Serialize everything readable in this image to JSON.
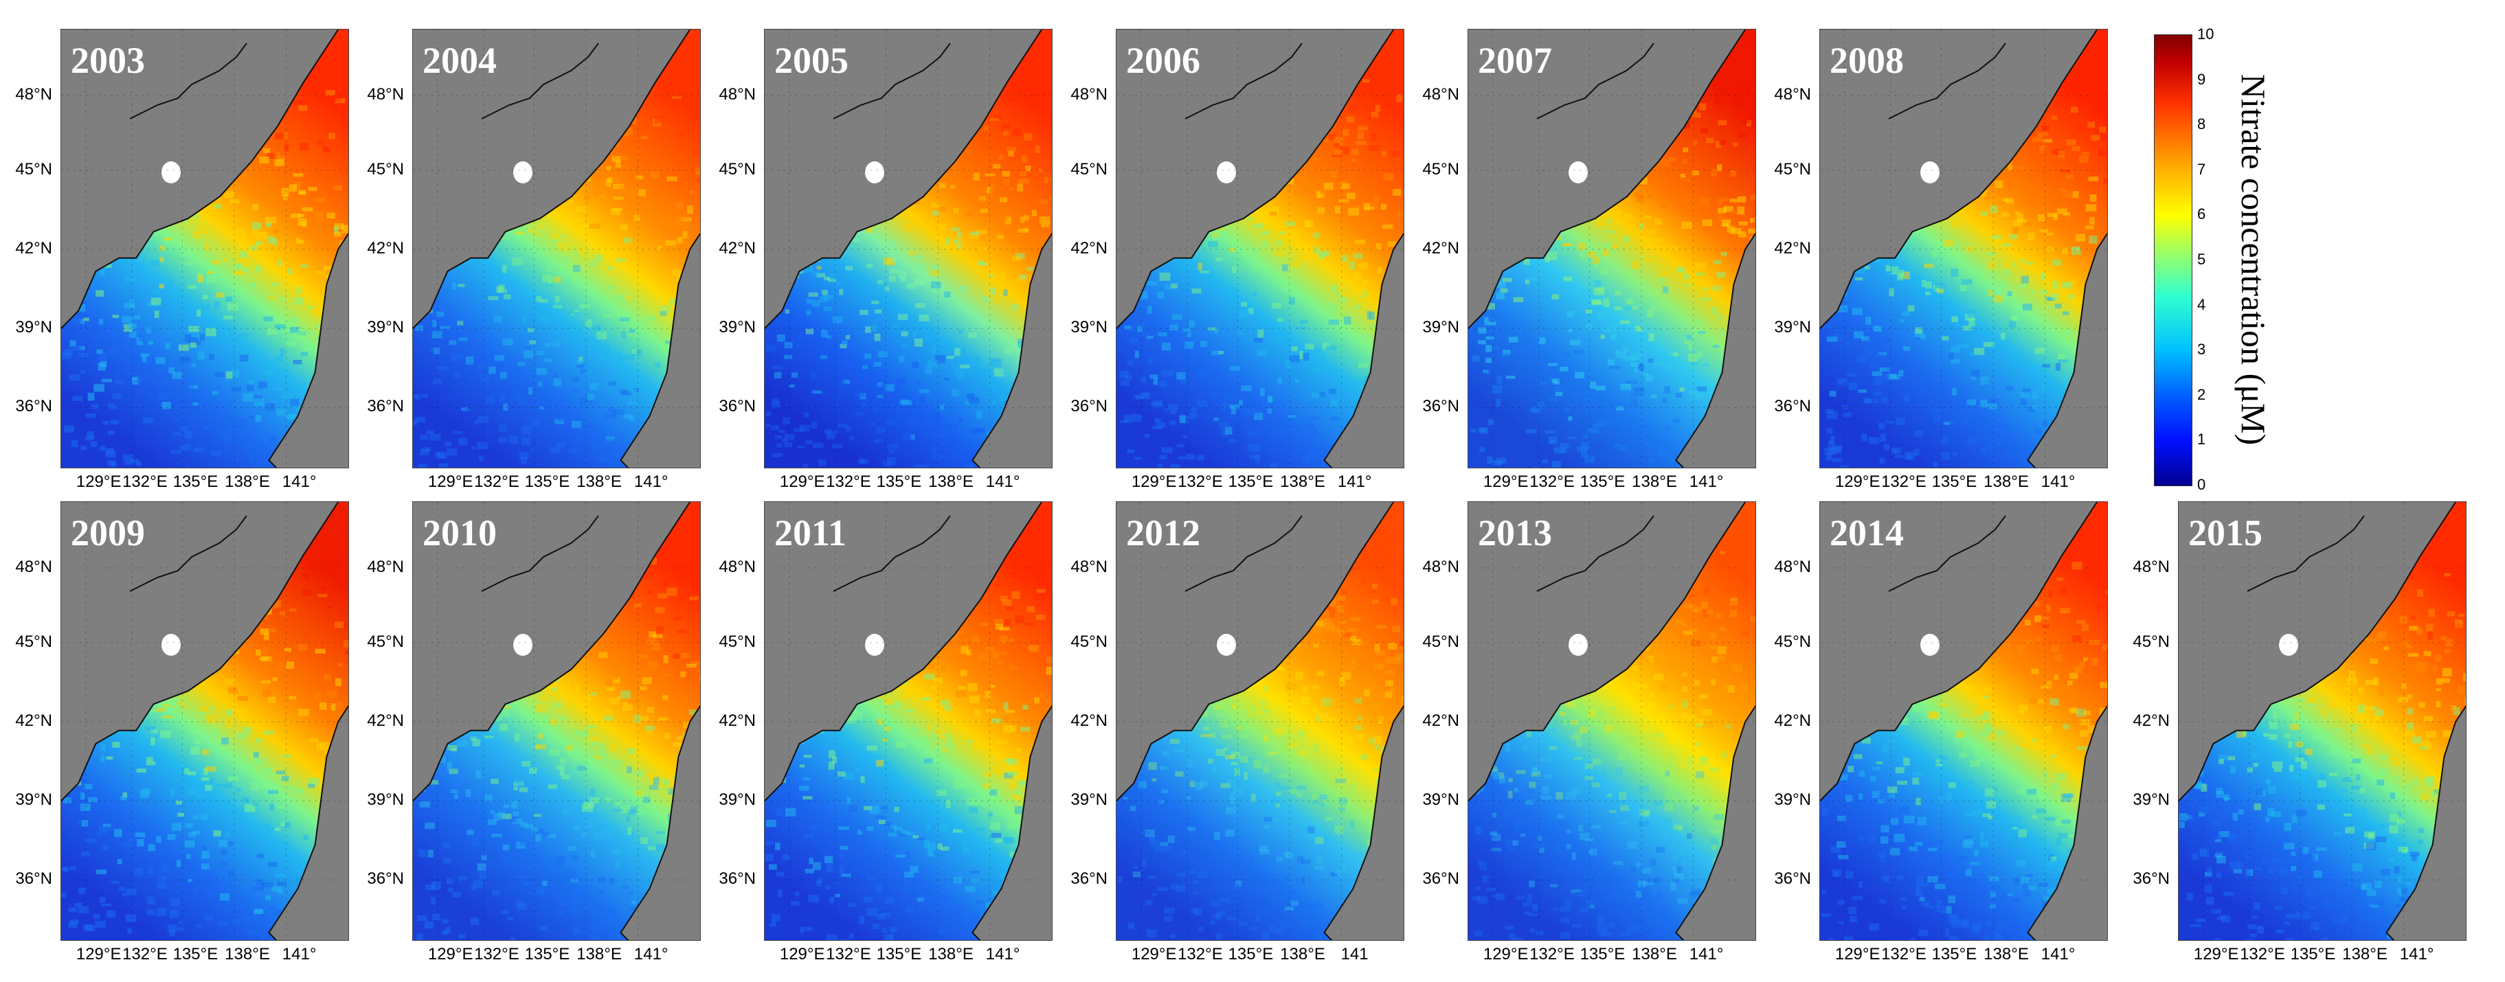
{
  "figure": {
    "panels": [
      {
        "year": "2003",
        "xlabels": [
          "129°E",
          "132°E",
          "135°E",
          "138°E",
          "141°"
        ],
        "intensity": 1.0,
        "palette": [
          "#ff2a00",
          "#ff8a00",
          "#ffd400",
          "#7ef58a",
          "#23b8f0",
          "#1b6bf0",
          "#1a3ad8"
        ]
      },
      {
        "year": "2004",
        "xlabels": [
          "129°E",
          "132°E",
          "135°E",
          "138°E",
          "141°"
        ],
        "intensity": 0.85,
        "palette": [
          "#ff3300",
          "#ff9000",
          "#ffd800",
          "#7ef58a",
          "#23b8f0",
          "#1b6bf0",
          "#1a3ad8"
        ]
      },
      {
        "year": "2005",
        "xlabels": [
          "129°E",
          "132°E",
          "135°E",
          "138°E",
          "141°"
        ],
        "intensity": 0.9,
        "palette": [
          "#ff2a00",
          "#ff8400",
          "#ffd000",
          "#80f0a0",
          "#20b0f0",
          "#1860f0",
          "#1830d0"
        ]
      },
      {
        "year": "2006",
        "xlabels": [
          "129°E",
          "132°E",
          "135°E",
          "138°E",
          "141°"
        ],
        "intensity": 0.9,
        "palette": [
          "#ff3000",
          "#ff8800",
          "#ffd400",
          "#7ef58a",
          "#23b8f0",
          "#1b6bf0",
          "#1a3ad8"
        ]
      },
      {
        "year": "2007",
        "xlabels": [
          "129°E",
          "132°E",
          "135°E",
          "138°E",
          "141°"
        ],
        "intensity": 1.0,
        "palette": [
          "#f01800",
          "#ff7a00",
          "#ffd000",
          "#8af080",
          "#30c8f0",
          "#1b7af0",
          "#1a48d8"
        ]
      },
      {
        "year": "2008",
        "xlabels": [
          "129°E",
          "132°E",
          "135°E",
          "138°E",
          "141°"
        ],
        "intensity": 0.95,
        "palette": [
          "#ff2400",
          "#ff8200",
          "#ffd200",
          "#7ef58a",
          "#23b8f0",
          "#1b6bf0",
          "#1a3ad8"
        ]
      },
      {
        "year": "2009",
        "xlabels": [
          "129°E",
          "132°E",
          "135°E",
          "138°E",
          "141°"
        ],
        "intensity": 1.0,
        "palette": [
          "#f01c00",
          "#ff8000",
          "#ffd000",
          "#7ef58a",
          "#23b8f0",
          "#1b6bf0",
          "#1a3ad8"
        ]
      },
      {
        "year": "2010",
        "xlabels": [
          "129°E",
          "132°E",
          "135°E",
          "138°E",
          "141°"
        ],
        "intensity": 0.9,
        "palette": [
          "#ff2a00",
          "#ff8a00",
          "#ffd400",
          "#7ef58a",
          "#2ab8f0",
          "#1b70f0",
          "#1a40d8"
        ]
      },
      {
        "year": "2011",
        "xlabels": [
          "129°E",
          "132°E",
          "135°E",
          "138°E",
          "141°"
        ],
        "intensity": 0.95,
        "palette": [
          "#ff2a00",
          "#ff8a00",
          "#ffd400",
          "#7ef58a",
          "#23b8f0",
          "#1b6bf0",
          "#1a3ad8"
        ]
      },
      {
        "year": "2012",
        "xlabels": [
          "129°E",
          "132°E",
          "135°E",
          "138°E",
          "141"
        ],
        "intensity": 0.75,
        "palette": [
          "#ff4a00",
          "#ffa000",
          "#ffe000",
          "#90f070",
          "#30c0f0",
          "#1b70f0",
          "#1a40d8"
        ]
      },
      {
        "year": "2013",
        "xlabels": [
          "129°E",
          "132°E",
          "135°E",
          "138°E",
          "141°"
        ],
        "intensity": 0.7,
        "palette": [
          "#ff5000",
          "#ffa400",
          "#ffe200",
          "#90f070",
          "#30c0f0",
          "#1b70f0",
          "#1a40d8"
        ]
      },
      {
        "year": "2014",
        "xlabels": [
          "129°E",
          "132°E",
          "135°E",
          "138°E",
          "141°"
        ],
        "intensity": 0.9,
        "palette": [
          "#ff2a00",
          "#ff8a00",
          "#ffd400",
          "#7ef58a",
          "#23b8f0",
          "#1b6bf0",
          "#1a3ad8"
        ]
      },
      {
        "year": "2015",
        "xlabels": [
          "129°E",
          "132°E",
          "135°E",
          "138°E",
          "141°"
        ],
        "intensity": 0.95,
        "palette": [
          "#ff2a00",
          "#ff8a00",
          "#ffd400",
          "#7ef58a",
          "#23b8f0",
          "#1b6bf0",
          "#1a3ad8"
        ]
      }
    ],
    "ylabels": [
      "48°N",
      "45°N",
      "42°N",
      "39°N",
      "36°N"
    ],
    "colors": {
      "land": "#7f7f7f",
      "coast": "#111111",
      "lake": "#ffffff"
    },
    "colorbar": {
      "label": "Nitrate concentration (μM)",
      "ticks": [
        "0",
        "1",
        "2",
        "3",
        "4",
        "5",
        "6",
        "7",
        "8",
        "9",
        "10"
      ],
      "min": 0,
      "max": 10
    }
  }
}
